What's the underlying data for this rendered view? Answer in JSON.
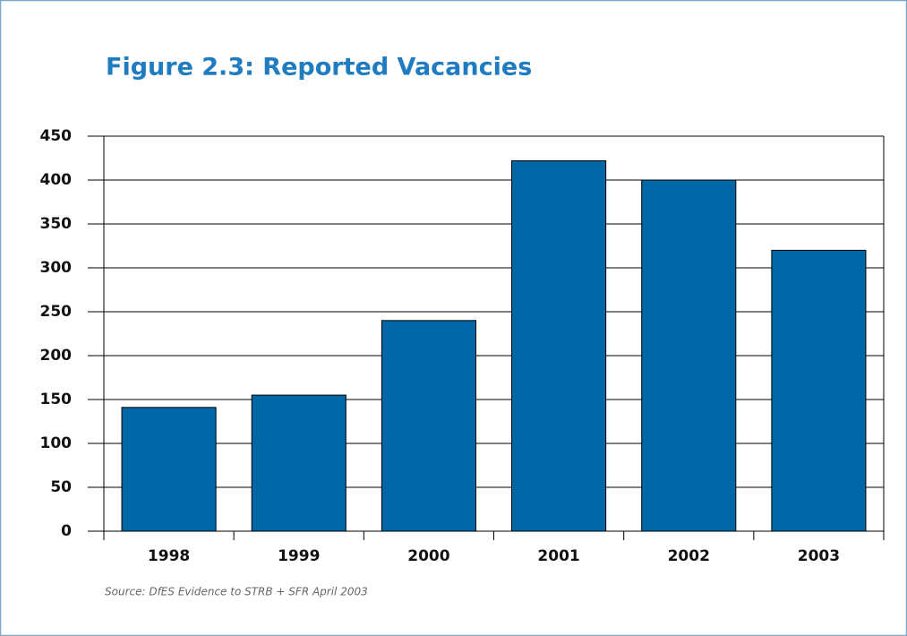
{
  "chart_data": {
    "type": "bar",
    "title": "Figure 2.3: Reported Vacancies",
    "source": "Source: DfES Evidence to STRB + SFR April 2003",
    "categories": [
      "1998",
      "1999",
      "2000",
      "2001",
      "2002",
      "2003"
    ],
    "values": [
      141,
      155,
      240,
      422,
      400,
      320
    ],
    "color": "#0067a6",
    "ylim": [
      0,
      450
    ],
    "yticks": [
      0,
      50,
      100,
      150,
      200,
      250,
      300,
      350,
      400,
      450
    ],
    "grid": true
  }
}
